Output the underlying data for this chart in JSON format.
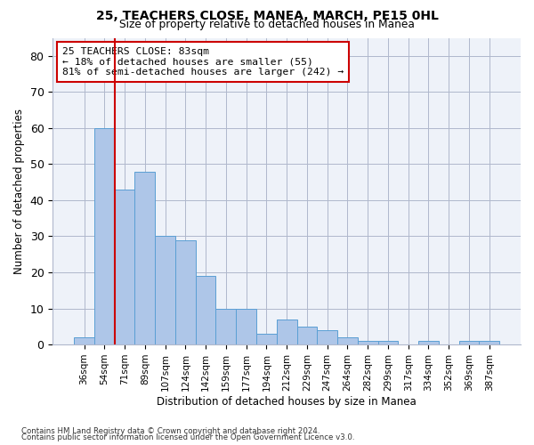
{
  "title": "25, TEACHERS CLOSE, MANEA, MARCH, PE15 0HL",
  "subtitle": "Size of property relative to detached houses in Manea",
  "xlabel": "Distribution of detached houses by size in Manea",
  "ylabel": "Number of detached properties",
  "categories": [
    "36sqm",
    "54sqm",
    "71sqm",
    "89sqm",
    "107sqm",
    "124sqm",
    "142sqm",
    "159sqm",
    "177sqm",
    "194sqm",
    "212sqm",
    "229sqm",
    "247sqm",
    "264sqm",
    "282sqm",
    "299sqm",
    "317sqm",
    "334sqm",
    "352sqm",
    "369sqm",
    "387sqm"
  ],
  "values": [
    2,
    60,
    43,
    48,
    30,
    29,
    19,
    10,
    10,
    3,
    7,
    5,
    4,
    2,
    1,
    1,
    0,
    1,
    0,
    1,
    1
  ],
  "bar_color": "#aec6e8",
  "bar_edge_color": "#5a9fd4",
  "vline_x": 1.5,
  "vline_color": "#cc0000",
  "annotation_text": "25 TEACHERS CLOSE: 83sqm\n← 18% of detached houses are smaller (55)\n81% of semi-detached houses are larger (242) →",
  "annotation_box_color": "#ffffff",
  "annotation_box_edge": "#cc0000",
  "ylim": [
    0,
    85
  ],
  "yticks": [
    0,
    10,
    20,
    30,
    40,
    50,
    60,
    70,
    80
  ],
  "footnote1": "Contains HM Land Registry data © Crown copyright and database right 2024.",
  "footnote2": "Contains public sector information licensed under the Open Government Licence v3.0.",
  "plot_bg": "#eef2f9"
}
